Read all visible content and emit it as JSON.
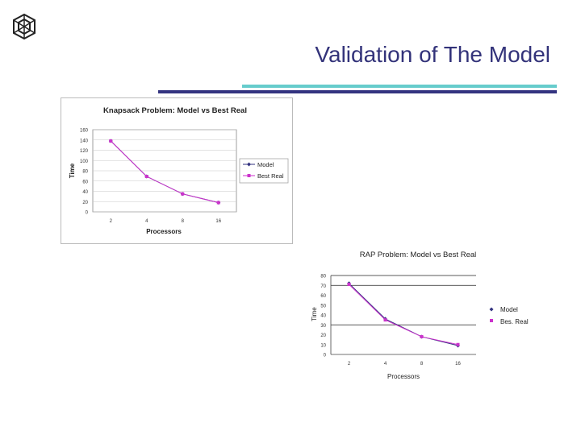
{
  "slide": {
    "title": "Validation of The Model",
    "colors": {
      "title": "#33337a",
      "rule_dark": "#333380",
      "rule_light": "#66cccc"
    }
  },
  "chart_data": [
    {
      "type": "line",
      "title": "Knapsack Problem: Model vs Best Real",
      "xlabel": "Processors",
      "ylabel": "Time",
      "categories": [
        "2",
        "4",
        "8",
        "16"
      ],
      "yticks": [
        "0",
        "20",
        "40",
        "60",
        "80",
        "100",
        "120",
        "140",
        "160"
      ],
      "ylim": [
        0,
        160
      ],
      "grid": true,
      "legend": "right",
      "series": [
        {
          "name": "Model",
          "values": [
            138,
            69,
            35,
            18
          ],
          "color": "#333380",
          "marker": "diamond"
        },
        {
          "name": "Best Real",
          "values": [
            138,
            69,
            35,
            18
          ],
          "color": "#cc33cc",
          "marker": "square"
        }
      ]
    },
    {
      "type": "line",
      "title": "RAP Problem: Model vs Best Real",
      "xlabel": "Processors",
      "ylabel": "Time",
      "categories": [
        "2",
        "4",
        "8",
        "16"
      ],
      "yticks": [
        "0",
        "10",
        "20",
        "30",
        "40",
        "50",
        "60",
        "70",
        "80"
      ],
      "ylim": [
        0,
        80
      ],
      "grid": true,
      "legend": "right",
      "series": [
        {
          "name": "Model",
          "values": [
            72,
            36,
            18,
            9
          ],
          "color": "#333380",
          "marker": "diamond"
        },
        {
          "name": "Bes. Real",
          "values": [
            71,
            35,
            18,
            10
          ],
          "color": "#cc33cc",
          "marker": "square"
        }
      ]
    }
  ]
}
